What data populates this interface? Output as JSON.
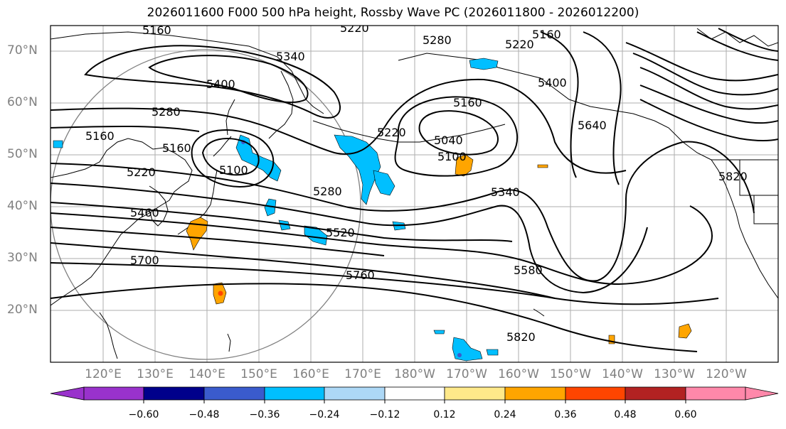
{
  "title": "2026011600 F000 500 hPa height, Rossby Wave PC (2026011800 - 2026012200)",
  "lat_labels": [
    "70°N",
    "60°N",
    "50°N",
    "40°N",
    "30°N",
    "20°N"
  ],
  "lon_labels": [
    "120°E",
    "130°E",
    "140°E",
    "150°E",
    "160°E",
    "170°E",
    "180°W",
    "170°W",
    "160°W",
    "150°W",
    "140°W",
    "130°W",
    "120°W"
  ],
  "contour_labels": [
    "5160",
    "5220",
    "5160",
    "5280",
    "5220",
    "5340",
    "5280",
    "5400",
    "5400",
    "5640",
    "5160",
    "5160",
    "5220",
    "5100",
    "5040",
    "5160",
    "5100",
    "5220",
    "5280",
    "5340",
    "5460",
    "5520",
    "5700",
    "5760",
    "5580",
    "5820",
    "5820"
  ],
  "colorbar": {
    "ticks": [
      "−0.60",
      "−0.48",
      "−0.36",
      "−0.24",
      "−0.12",
      "0.12",
      "0.24",
      "0.36",
      "0.48",
      "0.60"
    ],
    "colors": [
      "#9932cc",
      "#00008b",
      "#3a5bcd",
      "#00bfff",
      "#add8f6",
      "#ffffff",
      "#ffe98a",
      "#ffa500",
      "#ff4500",
      "#b22222",
      "#ff88aa"
    ]
  }
}
